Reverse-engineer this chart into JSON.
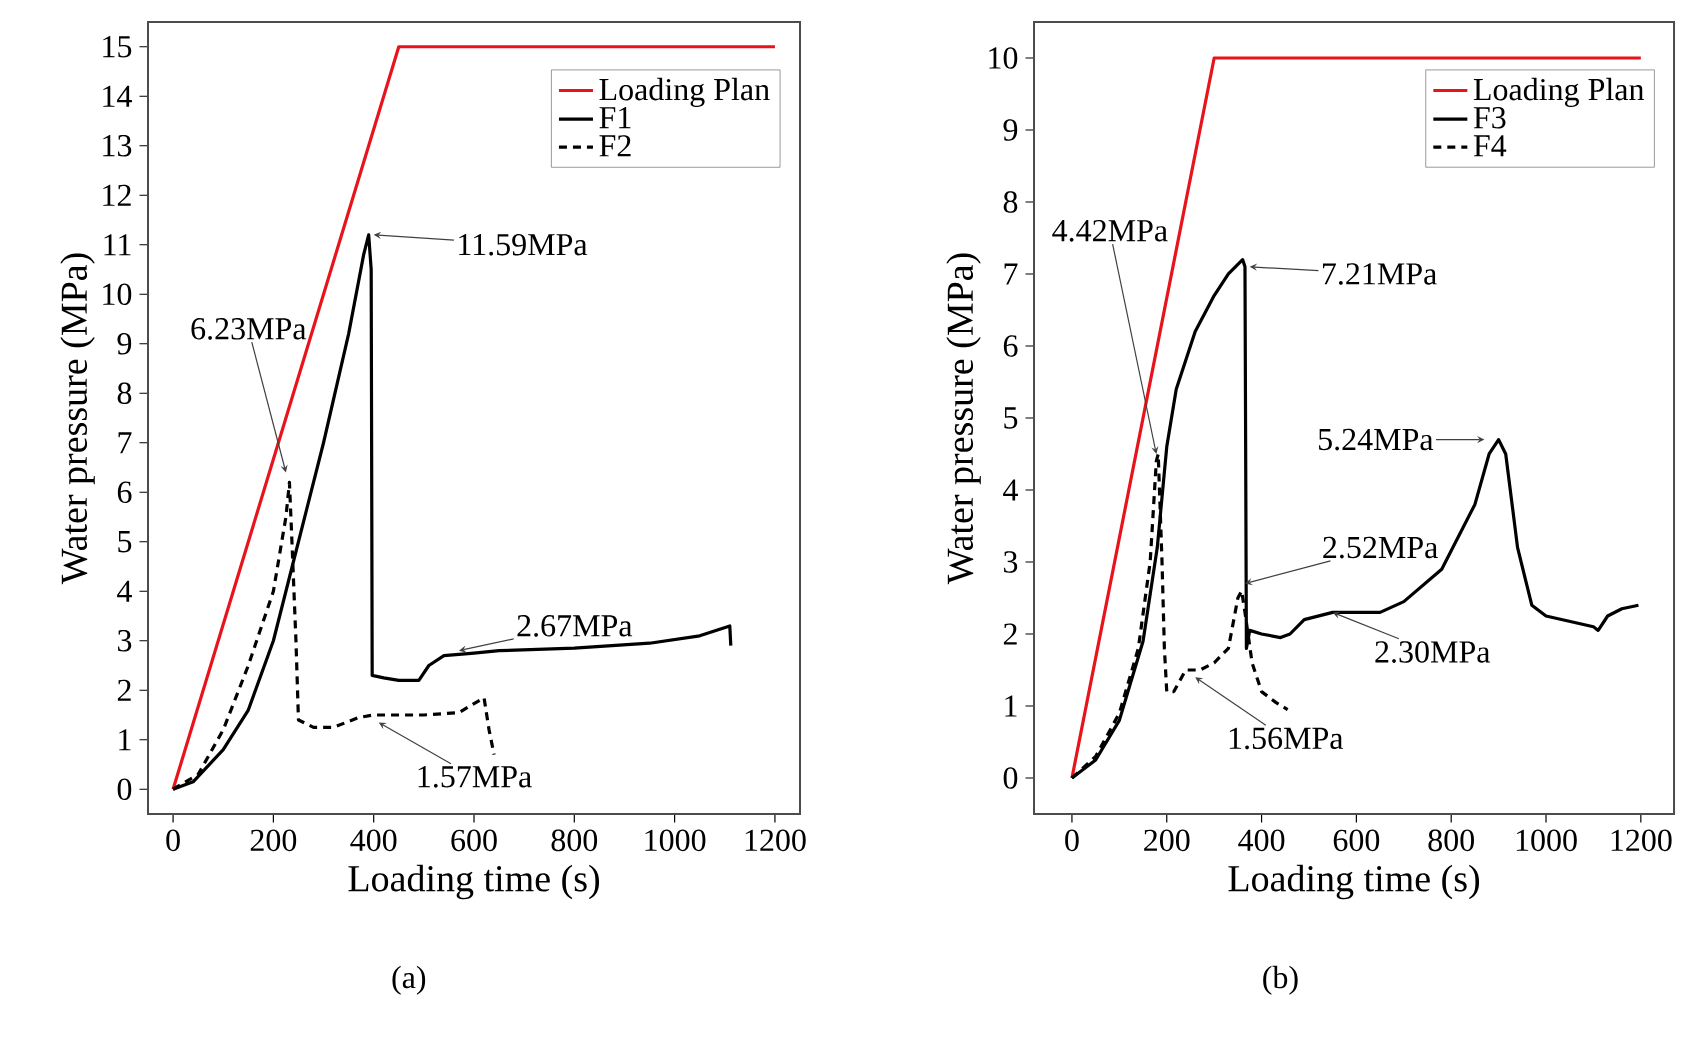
{
  "chart_data": [
    {
      "type": "line",
      "xlabel": "Loading time (s)",
      "ylabel": "Water pressure (MPa)",
      "xlim": [
        -50,
        1250
      ],
      "ylim": [
        -0.5,
        15.5
      ],
      "xticks": [
        0,
        200,
        400,
        600,
        800,
        1000,
        1200
      ],
      "yticks": [
        0,
        1,
        2,
        3,
        4,
        5,
        6,
        7,
        8,
        9,
        10,
        11,
        12,
        13,
        14,
        15
      ],
      "legend": "top right",
      "series": [
        {
          "name": "Loading Plan",
          "color": "#e8141c",
          "line_style": "solid",
          "x": [
            0,
            450,
            1200
          ],
          "values": [
            0,
            15,
            15
          ]
        },
        {
          "name": "F1",
          "color": "#000000",
          "line_style": "solid",
          "x": [
            0,
            40,
            100,
            150,
            200,
            250,
            300,
            350,
            380,
            390,
            395,
            397,
            420,
            450,
            490,
            510,
            540,
            600,
            650,
            800,
            950,
            1050,
            1110,
            1112
          ],
          "values": [
            0,
            0.15,
            0.8,
            1.6,
            3.0,
            5.0,
            7.0,
            9.2,
            10.8,
            11.2,
            10.5,
            2.3,
            2.25,
            2.2,
            2.2,
            2.5,
            2.7,
            2.75,
            2.8,
            2.85,
            2.95,
            3.1,
            3.3,
            2.9
          ]
        },
        {
          "name": "F2",
          "color": "#000000",
          "line_style": "dashed",
          "x": [
            0,
            50,
            100,
            150,
            200,
            225,
            232,
            237,
            245,
            250,
            280,
            320,
            370,
            400,
            500,
            570,
            620,
            630,
            640
          ],
          "values": [
            0,
            0.3,
            1.2,
            2.5,
            4.0,
            5.5,
            6.2,
            5.0,
            3.0,
            1.4,
            1.25,
            1.25,
            1.45,
            1.5,
            1.5,
            1.55,
            1.85,
            1.2,
            0.7
          ]
        }
      ],
      "annotations": [
        {
          "text": "11.59MPa",
          "x": 400,
          "y": 11.2
        },
        {
          "text": "6.23MPa",
          "x": 225,
          "y": 6.4
        },
        {
          "text": "2.67MPa",
          "x": 570,
          "y": 2.8
        },
        {
          "text": "1.57MPa",
          "x": 410,
          "y": 1.35
        },
        "(a)"
      ]
    },
    {
      "type": "line",
      "xlabel": "Loading time (s)",
      "ylabel": "Water pressure (MPa)",
      "xlim": [
        -80,
        1270
      ],
      "ylim": [
        -0.5,
        10.5
      ],
      "xticks": [
        0,
        200,
        400,
        600,
        800,
        1000,
        1200
      ],
      "yticks": [
        0,
        1,
        2,
        3,
        4,
        5,
        6,
        7,
        8,
        9,
        10
      ],
      "legend": "top right",
      "series": [
        {
          "name": "Loading Plan",
          "color": "#e8141c",
          "line_style": "solid",
          "x": [
            0,
            300,
            1200
          ],
          "values": [
            0,
            10,
            10
          ]
        },
        {
          "name": "F3",
          "color": "#000000",
          "line_style": "solid",
          "x": [
            0,
            50,
            100,
            150,
            180,
            200,
            220,
            260,
            300,
            330,
            360,
            365,
            368,
            375,
            400,
            440,
            460,
            490,
            550,
            650,
            700,
            780,
            850,
            880,
            900,
            915,
            940,
            970,
            1000,
            1100,
            1110,
            1130,
            1160,
            1195
          ],
          "values": [
            0,
            0.25,
            0.8,
            1.9,
            3.2,
            4.6,
            5.4,
            6.2,
            6.7,
            7.0,
            7.2,
            7.1,
            1.8,
            2.05,
            2.0,
            1.95,
            2.0,
            2.2,
            2.3,
            2.3,
            2.45,
            2.9,
            3.8,
            4.5,
            4.7,
            4.5,
            3.2,
            2.4,
            2.25,
            2.1,
            2.05,
            2.25,
            2.35,
            2.4
          ]
        },
        {
          "name": "F4",
          "color": "#000000",
          "line_style": "dashed",
          "x": [
            0,
            50,
            100,
            140,
            165,
            178,
            182,
            190,
            195,
            200,
            215,
            240,
            270,
            300,
            330,
            350,
            358,
            365,
            380,
            400,
            430,
            455
          ],
          "values": [
            0,
            0.3,
            0.9,
            1.8,
            3.0,
            4.4,
            4.5,
            3.0,
            1.8,
            1.2,
            1.2,
            1.5,
            1.5,
            1.6,
            1.8,
            2.5,
            2.6,
            2.3,
            1.6,
            1.2,
            1.05,
            0.95
          ]
        }
      ],
      "annotations": [
        {
          "text": "4.42MPa",
          "x": 178,
          "y": 4.5
        },
        {
          "text": "7.21MPa",
          "x": 375,
          "y": 7.1
        },
        {
          "text": "5.24MPa",
          "x": 870,
          "y": 4.7
        },
        {
          "text": "2.52MPa",
          "x": 365,
          "y": 2.7
        },
        {
          "text": "2.30MPa",
          "x": 550,
          "y": 2.3
        },
        {
          "text": "1.56MPa",
          "x": 260,
          "y": 1.4
        },
        "(b)"
      ]
    }
  ]
}
